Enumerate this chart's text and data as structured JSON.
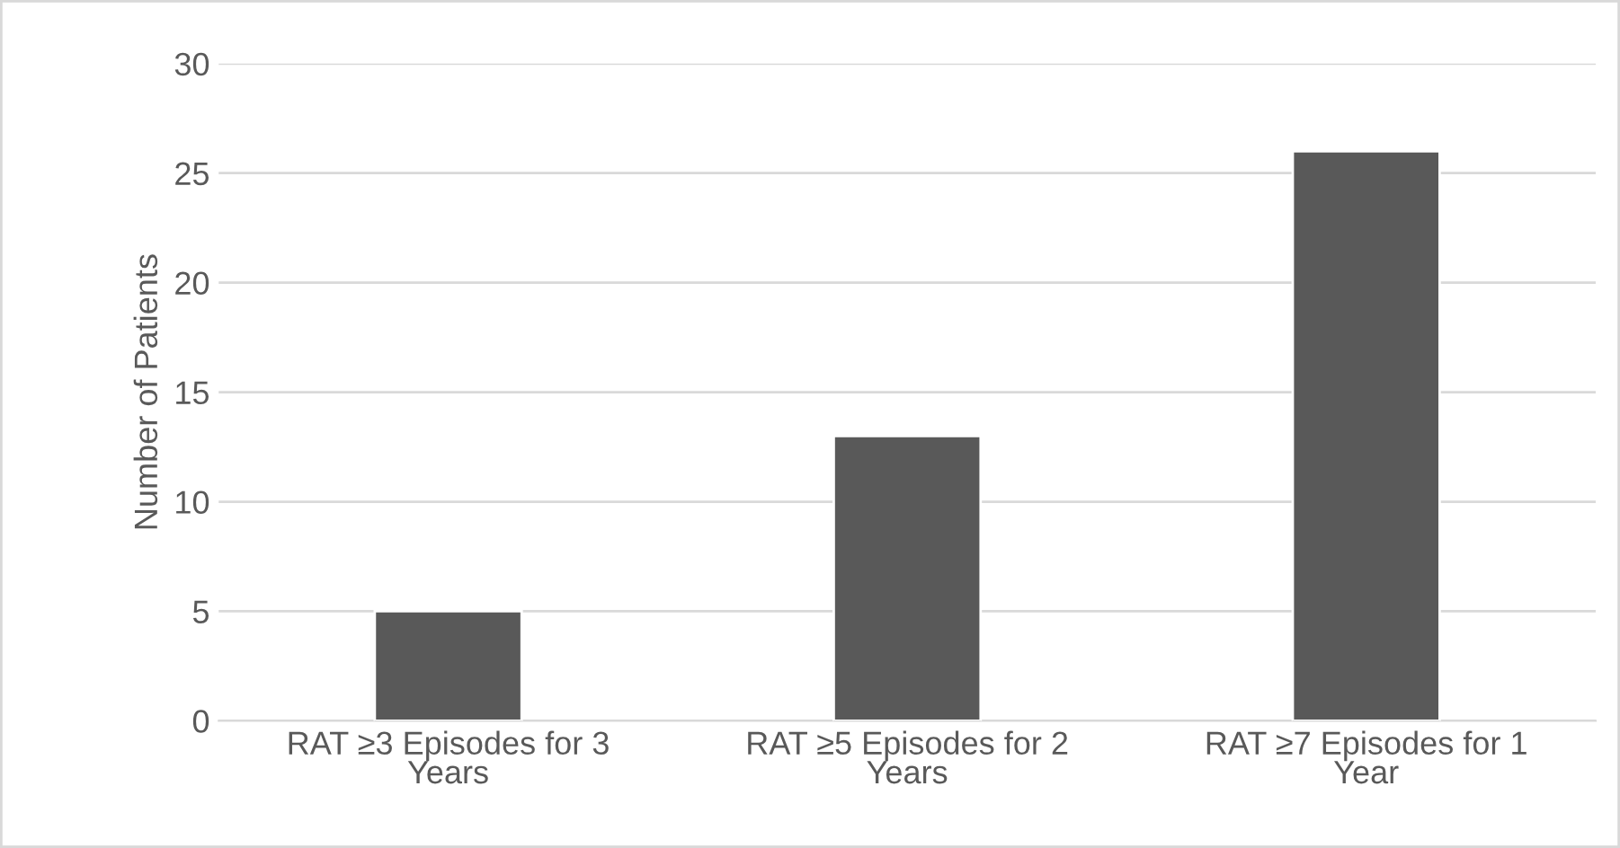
{
  "chart_data": {
    "type": "bar",
    "ylabel": "Number of Patients",
    "categories": [
      "RAT ≥3 Episodes for 3\nYears",
      "RAT ≥5 Episodes for 2\nYears",
      "RAT ≥7 Episodes for 1\nYear"
    ],
    "values": [
      5,
      13,
      26
    ],
    "color": "#595959",
    "ylim": [
      0,
      30
    ],
    "yticks": [
      0,
      5,
      10,
      15,
      20,
      25,
      30
    ],
    "grid": "y"
  }
}
